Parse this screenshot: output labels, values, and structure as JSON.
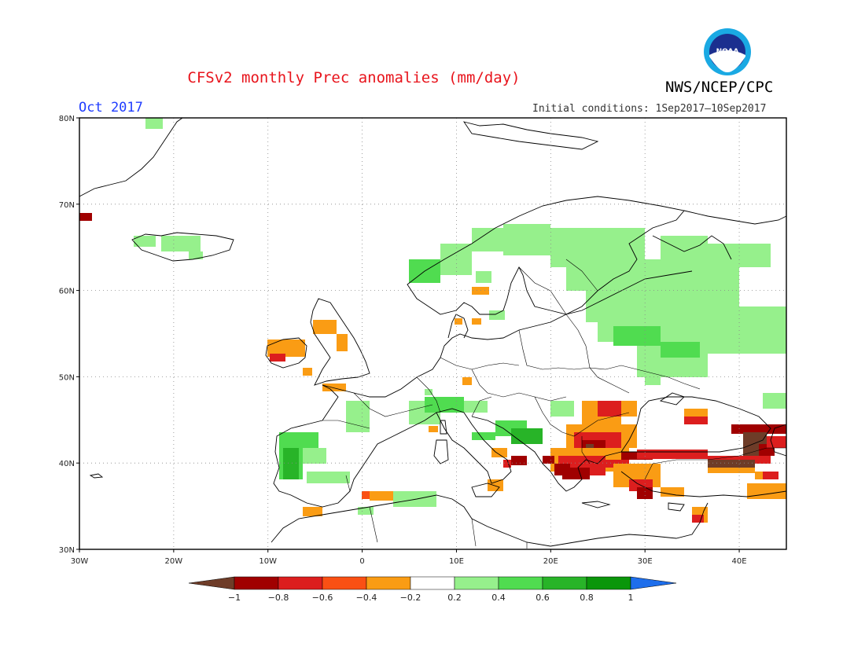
{
  "header": {
    "title": "CFSv2 monthly Prec anomalies (mm/day)",
    "org": "NWS/NCEP/CPC",
    "month": "Oct 2017",
    "initial_conditions": "Initial conditions: 1Sep2017–10Sep2017"
  },
  "logo": {
    "text": "NOAA"
  },
  "map": {
    "lon_range": [
      -30,
      45
    ],
    "lat_range": [
      30,
      80
    ],
    "grid": "dotted",
    "lon_ticks": [
      "30W",
      "20W",
      "10W",
      "0",
      "10E",
      "20E",
      "30E",
      "40E"
    ],
    "lat_ticks": [
      "80N",
      "70N",
      "60N",
      "50N",
      "40N",
      "30N"
    ]
  },
  "legend": {
    "labels": [
      "−1",
      "−0.8",
      "−0.6",
      "−0.4",
      "−0.2",
      "0.2",
      "0.4",
      "0.6",
      "0.8",
      "1"
    ],
    "colors": [
      "#6e3c28",
      "#a00000",
      "#dc1e1e",
      "#fa5014",
      "#fa9c14",
      "#ffffff",
      "#96f08c",
      "#50dc50",
      "#28b428",
      "#0a960a",
      "#1e6eeb"
    ]
  },
  "colors": {
    "title": "#e8141c",
    "month": "#1f3cff"
  }
}
